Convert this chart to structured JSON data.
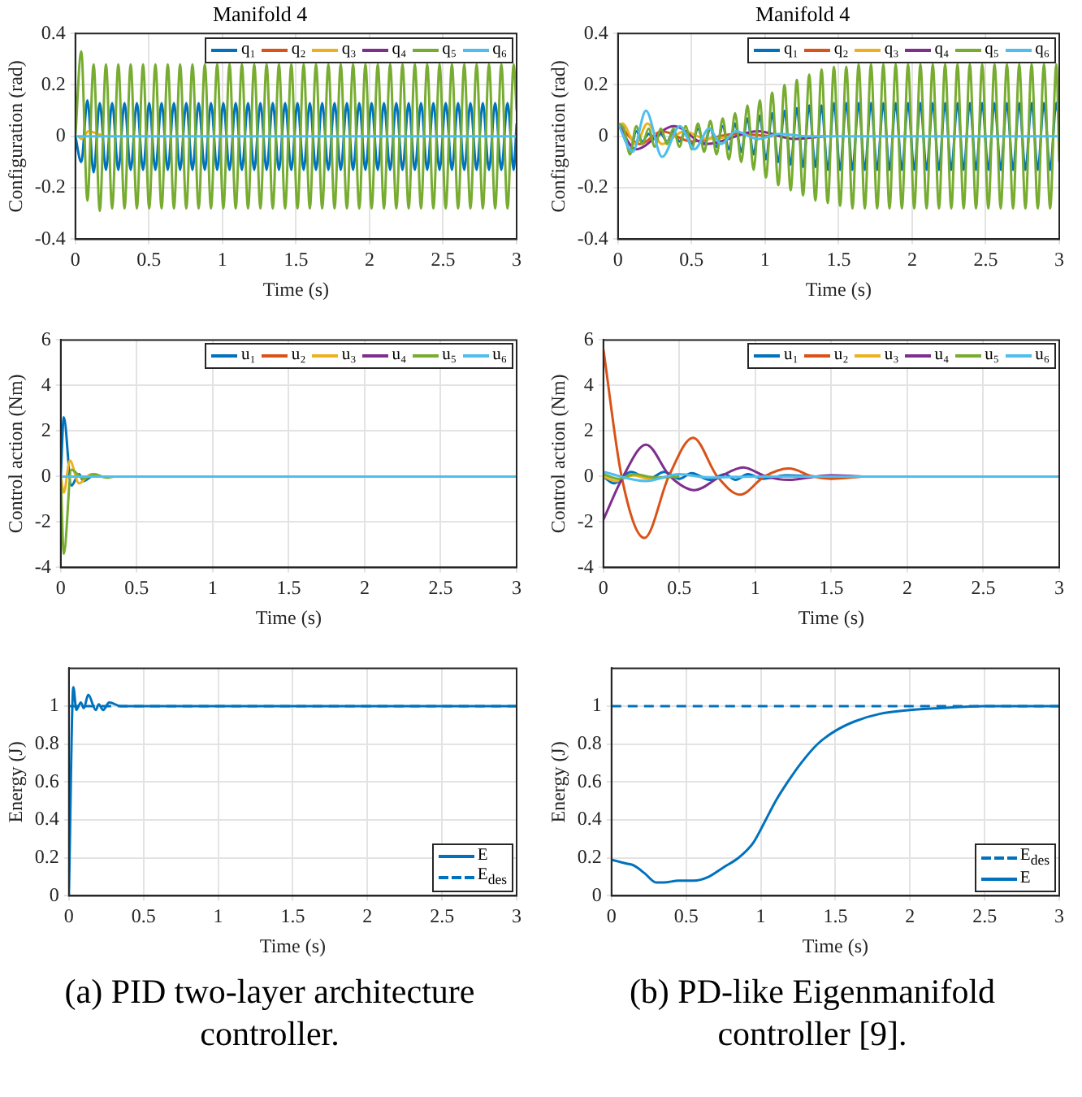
{
  "chart_data": [
    {
      "type": "line",
      "title": "Manifold 4",
      "xlabel": "Time (s)",
      "ylabel": "Configuration (rad)",
      "xlim": [
        0,
        3
      ],
      "xticks": [
        0,
        0.5,
        1,
        1.5,
        2,
        2.5,
        3
      ],
      "ylim": [
        -0.4,
        0.4
      ],
      "yticks": [
        -0.4,
        -0.2,
        0,
        0.2,
        0.4
      ],
      "grid": true,
      "legend": "top right",
      "series": [
        {
          "name": "q₁",
          "color": "#0072bd",
          "x": [
            0,
            0.04,
            0.082,
            0.124,
            0.166,
            0.208,
            0.25,
            0.292,
            0.334,
            0.376,
            0.418,
            0.46,
            0.502,
            0.544,
            0.586,
            0.628,
            0.67,
            0.712,
            0.754,
            0.796,
            0.838,
            0.88,
            0.922,
            0.964,
            1.006,
            1.048,
            1.09,
            1.132,
            1.174,
            1.216,
            1.258,
            1.3,
            1.342,
            1.384,
            1.426,
            1.468,
            1.51,
            1.552,
            1.594,
            1.636,
            1.678,
            1.72,
            1.762,
            1.804,
            1.846,
            1.888,
            1.93,
            1.972,
            2.014,
            2.056,
            2.098,
            2.14,
            2.182,
            2.224,
            2.266,
            2.308,
            2.35,
            2.392,
            2.434,
            2.476,
            2.518,
            2.56,
            2.602,
            2.644,
            2.686,
            2.728,
            2.77,
            2.812,
            2.854,
            2.896,
            2.938,
            2.98,
            3
          ],
          "values": [
            0,
            -0.1,
            0.14,
            -0.14,
            0.13,
            -0.13,
            0.13,
            -0.13,
            0.13,
            -0.13,
            0.13,
            -0.13,
            0.13,
            -0.13,
            0.13,
            -0.13,
            0.13,
            -0.13,
            0.13,
            -0.13,
            0.13,
            -0.13,
            0.13,
            -0.13,
            0.13,
            -0.13,
            0.13,
            -0.13,
            0.13,
            -0.13,
            0.13,
            -0.13,
            0.13,
            -0.13,
            0.13,
            -0.13,
            0.13,
            -0.13,
            0.13,
            -0.13,
            0.13,
            -0.13,
            0.13,
            -0.13,
            0.13,
            -0.13,
            0.13,
            -0.13,
            0.13,
            -0.13,
            0.13,
            -0.13,
            0.13,
            -0.13,
            0.13,
            -0.13,
            0.13,
            -0.13,
            0.13,
            -0.13,
            0.13,
            -0.13,
            0.13,
            -0.13,
            0.13,
            -0.13,
            0.13,
            -0.13,
            0.13,
            -0.13,
            0.13,
            -0.13,
            0.05
          ]
        },
        {
          "name": "q₂",
          "color": "#d95319"
        },
        {
          "name": "q₃",
          "color": "#edb120",
          "x": [
            0.02,
            0.04,
            0.09,
            0.15,
            0.2
          ],
          "values": [
            0,
            -0.01,
            0.02,
            0.01,
            0
          ]
        },
        {
          "name": "q₄",
          "color": "#7e2f8e"
        },
        {
          "name": "q₅",
          "color": "#77ac30",
          "x": [
            0,
            0.04,
            0.082,
            0.124,
            0.166,
            0.208,
            0.25,
            0.292,
            0.334,
            0.376,
            0.418,
            0.46,
            0.502,
            0.544,
            0.586,
            0.628,
            0.67,
            0.712,
            0.754,
            0.796,
            0.838,
            0.88,
            0.922,
            0.964,
            1.006,
            1.048,
            1.09,
            1.132,
            1.174,
            1.216,
            1.258,
            1.3,
            1.342,
            1.384,
            1.426,
            1.468,
            1.51,
            1.552,
            1.594,
            1.636,
            1.678,
            1.72,
            1.762,
            1.804,
            1.846,
            1.888,
            1.93,
            1.972,
            2.014,
            2.056,
            2.098,
            2.14,
            2.182,
            2.224,
            2.266,
            2.308,
            2.35,
            2.392,
            2.434,
            2.476,
            2.518,
            2.56,
            2.602,
            2.644,
            2.686,
            2.728,
            2.77,
            2.812,
            2.854,
            2.896,
            2.938,
            2.98,
            3
          ],
          "values": [
            0,
            0.33,
            -0.25,
            0.28,
            -0.29,
            0.28,
            -0.28,
            0.28,
            -0.28,
            0.28,
            -0.28,
            0.28,
            -0.28,
            0.28,
            -0.28,
            0.28,
            -0.28,
            0.28,
            -0.28,
            0.28,
            -0.28,
            0.28,
            -0.28,
            0.28,
            -0.28,
            0.28,
            -0.28,
            0.28,
            -0.28,
            0.28,
            -0.28,
            0.28,
            -0.28,
            0.28,
            -0.28,
            0.28,
            -0.28,
            0.28,
            -0.28,
            0.28,
            -0.28,
            0.28,
            -0.28,
            0.28,
            -0.28,
            0.28,
            -0.28,
            0.28,
            -0.28,
            0.28,
            -0.28,
            0.28,
            -0.28,
            0.28,
            -0.28,
            0.28,
            -0.28,
            0.28,
            -0.28,
            0.28,
            -0.28,
            0.28,
            -0.28,
            0.28,
            -0.28,
            0.28,
            -0.28,
            0.28,
            -0.28,
            0.28,
            -0.28,
            0.28,
            0.1
          ]
        },
        {
          "name": "q₆",
          "color": "#4dbeee",
          "x": [
            0,
            0.1,
            3
          ],
          "values": [
            0,
            0,
            0
          ]
        }
      ]
    },
    {
      "type": "line",
      "title": "Manifold 4",
      "xlabel": "Time (s)",
      "ylabel": "Configuration (rad)",
      "xlim": [
        0,
        3
      ],
      "xticks": [
        0,
        0.5,
        1,
        1.5,
        2,
        2.5,
        3
      ],
      "ylim": [
        -0.4,
        0.4
      ],
      "yticks": [
        -0.4,
        -0.2,
        0,
        0.2,
        0.4
      ],
      "grid": true,
      "legend": "top right",
      "x": [
        0,
        0.04,
        0.082,
        0.124,
        0.166,
        0.208,
        0.25,
        0.292,
        0.334,
        0.376,
        0.418,
        0.46,
        0.502,
        0.544,
        0.586,
        0.628,
        0.67,
        0.712,
        0.754,
        0.796,
        0.838,
        0.88,
        0.922,
        0.964,
        1.006,
        1.048,
        1.09,
        1.132,
        1.174,
        1.216,
        1.258,
        1.3,
        1.342,
        1.384,
        1.426,
        1.468,
        1.51,
        1.552,
        1.594,
        1.636,
        1.678,
        1.72,
        1.762,
        1.804,
        1.846,
        1.888,
        1.93,
        1.972,
        2.014,
        2.056,
        2.098,
        2.14,
        2.182,
        2.224,
        2.266,
        2.308,
        2.35,
        2.392,
        2.434,
        2.476,
        2.518,
        2.56,
        2.602,
        2.644,
        2.686,
        2.728,
        2.77,
        2.812,
        2.854,
        2.896,
        2.938,
        2.98,
        3
      ],
      "series": [
        {
          "name": "q₁",
          "color": "#0072bd",
          "values": [
            0.05,
            0.02,
            -0.06,
            0.02,
            -0.02,
            0.01,
            -0.01,
            0.01,
            -0.02,
            0.02,
            -0.02,
            0.02,
            -0.03,
            0.03,
            -0.03,
            0.03,
            -0.04,
            0.04,
            -0.05,
            0.05,
            -0.06,
            0.07,
            -0.07,
            0.08,
            -0.09,
            0.09,
            -0.1,
            0.1,
            -0.11,
            0.11,
            -0.12,
            0.12,
            -0.12,
            0.12,
            -0.13,
            0.13,
            -0.13,
            0.13,
            -0.13,
            0.13,
            -0.13,
            0.13,
            -0.13,
            0.13,
            -0.13,
            0.13,
            -0.13,
            0.13,
            -0.13,
            0.13,
            -0.13,
            0.13,
            -0.13,
            0.13,
            -0.13,
            0.13,
            -0.13,
            0.13,
            -0.13,
            0.13,
            -0.13,
            0.13,
            -0.13,
            0.13,
            -0.13,
            0.13,
            -0.13,
            0.13,
            -0.13,
            0.13,
            -0.13,
            0.13,
            0.05
          ]
        },
        {
          "name": "q₂",
          "color": "#d95319",
          "x": [
            0,
            0.15,
            0.3,
            0.5,
            0.8,
            1.05
          ],
          "values": [
            0.05,
            -0.03,
            0.02,
            -0.02,
            0.01,
            0
          ]
        },
        {
          "name": "q₃",
          "color": "#edb120",
          "x": [
            0,
            0.03,
            0.12,
            0.2,
            0.3,
            0.45,
            0.6,
            0.8
          ],
          "values": [
            0.04,
            0.05,
            -0.03,
            0.05,
            -0.03,
            0.02,
            -0.01,
            0
          ]
        },
        {
          "name": "q₄",
          "color": "#7e2f8e",
          "x": [
            0,
            0.12,
            0.38,
            0.6,
            0.95,
            1.2,
            1.4
          ],
          "values": [
            0.05,
            -0.05,
            0.04,
            -0.03,
            0.02,
            -0.01,
            0
          ]
        },
        {
          "name": "q₅",
          "color": "#77ac30",
          "values": [
            0.05,
            0.03,
            -0.07,
            0.04,
            -0.03,
            0.03,
            -0.04,
            0.03,
            -0.03,
            0.03,
            -0.04,
            0.04,
            -0.05,
            0.05,
            -0.06,
            0.06,
            -0.07,
            0.07,
            -0.09,
            0.09,
            -0.1,
            0.12,
            -0.13,
            0.14,
            -0.16,
            0.17,
            -0.19,
            0.2,
            -0.21,
            0.22,
            -0.23,
            0.24,
            -0.25,
            0.26,
            -0.26,
            0.27,
            -0.27,
            0.27,
            -0.28,
            0.28,
            -0.28,
            0.28,
            -0.28,
            0.28,
            -0.28,
            0.28,
            -0.28,
            0.28,
            -0.28,
            0.28,
            -0.28,
            0.28,
            -0.28,
            0.28,
            -0.28,
            0.28,
            -0.28,
            0.28,
            -0.28,
            0.28,
            -0.28,
            0.28,
            -0.28,
            0.28,
            -0.28,
            0.28,
            -0.28,
            0.28,
            -0.28,
            0.28,
            -0.28,
            0.28,
            -0.1
          ]
        },
        {
          "name": "q₆",
          "color": "#4dbeee",
          "x": [
            0,
            0.1,
            0.19,
            0.3,
            0.42,
            0.52,
            0.62,
            0.7,
            0.8,
            0.95,
            1.1,
            1.3,
            3
          ],
          "values": [
            0.05,
            -0.06,
            0.1,
            -0.08,
            0.04,
            -0.05,
            0.03,
            -0.03,
            0.02,
            -0.01,
            0.01,
            0,
            0
          ]
        }
      ]
    },
    {
      "type": "line",
      "xlabel": "Time (s)",
      "ylabel": "Control action (Nm)",
      "xlim": [
        0,
        3
      ],
      "xticks": [
        0,
        0.5,
        1,
        1.5,
        2,
        2.5,
        3
      ],
      "ylim": [
        -4,
        6
      ],
      "yticks": [
        -4,
        -2,
        0,
        2,
        4,
        6
      ],
      "grid": true,
      "legend": "top right",
      "series": [
        {
          "name": "u₁",
          "color": "#0072bd",
          "x": [
            0,
            0.02,
            0.07,
            0.12,
            0.15,
            0.2
          ],
          "values": [
            0,
            2.6,
            -0.4,
            0.1,
            -0.2,
            0
          ]
        },
        {
          "name": "u₂",
          "color": "#d95319"
        },
        {
          "name": "u₃",
          "color": "#edb120",
          "x": [
            0,
            0.02,
            0.06,
            0.12,
            0.2,
            0.25
          ],
          "values": [
            0,
            -0.7,
            0.7,
            -0.3,
            0.1,
            0
          ]
        },
        {
          "name": "u₄",
          "color": "#7e2f8e"
        },
        {
          "name": "u₅",
          "color": "#77ac30",
          "x": [
            0,
            0.02,
            0.07,
            0.15,
            0.22,
            0.3,
            0.35
          ],
          "values": [
            0,
            -3.4,
            0.3,
            -0.1,
            0.1,
            -0.05,
            0
          ]
        },
        {
          "name": "u₆",
          "color": "#4dbeee",
          "x": [
            0,
            0.2,
            3
          ],
          "values": [
            0,
            0,
            0
          ]
        }
      ]
    },
    {
      "type": "line",
      "xlabel": "Time (s)",
      "ylabel": "Control action (Nm)",
      "xlim": [
        0,
        3
      ],
      "xticks": [
        0,
        0.5,
        1,
        1.5,
        2,
        2.5,
        3
      ],
      "ylim": [
        -4,
        6
      ],
      "yticks": [
        -4,
        -2,
        0,
        2,
        4,
        6
      ],
      "grid": true,
      "legend": "top right",
      "series": [
        {
          "name": "u₁",
          "color": "#0072bd",
          "x": [
            0,
            0.07,
            0.18,
            0.3,
            0.4,
            0.5,
            0.58,
            0.7,
            0.8,
            0.87,
            0.95,
            1.05,
            1.2,
            1.4
          ],
          "values": [
            0,
            -0.3,
            0.2,
            -0.1,
            0.2,
            -0.1,
            0.15,
            -0.15,
            0.1,
            -0.15,
            0.1,
            -0.1,
            0.05,
            0
          ]
        },
        {
          "name": "u₂",
          "color": "#d95319",
          "x": [
            0,
            0.12,
            0.27,
            0.43,
            0.59,
            0.75,
            0.9,
            1.06,
            1.22,
            1.38,
            1.5,
            1.7
          ],
          "values": [
            5.6,
            0,
            -2.7,
            0,
            1.7,
            0,
            -0.8,
            0,
            0.35,
            0,
            -0.1,
            0
          ]
        },
        {
          "name": "u₃",
          "color": "#edb120",
          "x": [
            0,
            0.08,
            0.2,
            0.3,
            0.45
          ],
          "values": [
            0,
            -0.2,
            0.05,
            -0.1,
            0
          ]
        },
        {
          "name": "u₄",
          "color": "#7e2f8e",
          "x": [
            0,
            0.13,
            0.28,
            0.44,
            0.6,
            0.77,
            0.92,
            1.07,
            1.22,
            1.4,
            1.5,
            1.7
          ],
          "values": [
            -1.9,
            0,
            1.4,
            0,
            -0.6,
            0,
            0.4,
            0,
            -0.15,
            0,
            0.05,
            0
          ]
        },
        {
          "name": "u₅",
          "color": "#77ac30",
          "x": [
            0,
            0.1,
            0.2,
            0.35,
            0.5
          ],
          "values": [
            0.1,
            -0.1,
            0.1,
            -0.05,
            0
          ]
        },
        {
          "name": "u₆",
          "color": "#4dbeee",
          "x": [
            0,
            0.28,
            0.5,
            0.7,
            1,
            3
          ],
          "values": [
            0.2,
            -0.2,
            0.1,
            -0.05,
            0,
            0
          ]
        }
      ]
    },
    {
      "type": "line",
      "xlabel": "Time (s)",
      "ylabel": "Energy (J)",
      "xlim": [
        0,
        3
      ],
      "xticks": [
        0,
        0.5,
        1,
        1.5,
        2,
        2.5,
        3
      ],
      "ylim": [
        0,
        1.2
      ],
      "yticks": [
        0,
        0.2,
        0.4,
        0.6,
        0.8,
        1
      ],
      "grid": true,
      "legend": "bottom right",
      "annotations": [
        "(a) PID two-layer architecture controller."
      ],
      "series": [
        {
          "name": "E",
          "color": "#0072bd",
          "x": [
            0,
            0.03,
            0.05,
            0.08,
            0.1,
            0.13,
            0.18,
            0.2,
            0.23,
            0.27,
            0.35,
            3
          ],
          "values": [
            0,
            1.1,
            0.98,
            1.02,
            0.99,
            1.06,
            0.98,
            1.01,
            0.98,
            1.02,
            1,
            1
          ]
        },
        {
          "name": "E$_{des}$",
          "color": "#0072bd",
          "line_style": "dashed",
          "x": [
            0,
            3
          ],
          "values": [
            1,
            1
          ]
        }
      ]
    },
    {
      "type": "line",
      "xlabel": "Time (s)",
      "ylabel": "Energy (J)",
      "xlim": [
        0,
        3
      ],
      "xticks": [
        0,
        0.5,
        1,
        1.5,
        2,
        2.5,
        3
      ],
      "ylim": [
        0,
        1.2
      ],
      "yticks": [
        0,
        0.2,
        0.4,
        0.6,
        0.8,
        1
      ],
      "grid": true,
      "legend": "bottom right",
      "annotations": [
        "(b) PD-like Eigenmanifold controller [9]."
      ],
      "series": [
        {
          "name": "E$_{des}$",
          "color": "#0072bd",
          "line_style": "dashed",
          "x": [
            0,
            3
          ],
          "values": [
            1,
            1
          ]
        },
        {
          "name": "E",
          "color": "#0072bd",
          "x": [
            0,
            0.1,
            0.15,
            0.22,
            0.3,
            0.35,
            0.45,
            0.55,
            0.65,
            0.75,
            0.85,
            0.95,
            1.02,
            1.1,
            1.18,
            1.27,
            1.38,
            1.5,
            1.63,
            1.8,
            2,
            2.2,
            2.5,
            3
          ],
          "values": [
            0.19,
            0.17,
            0.16,
            0.12,
            0.07,
            0.07,
            0.08,
            0.08,
            0.1,
            0.15,
            0.2,
            0.28,
            0.38,
            0.5,
            0.6,
            0.7,
            0.8,
            0.87,
            0.92,
            0.96,
            0.98,
            0.99,
            1,
            1
          ]
        }
      ]
    }
  ]
}
